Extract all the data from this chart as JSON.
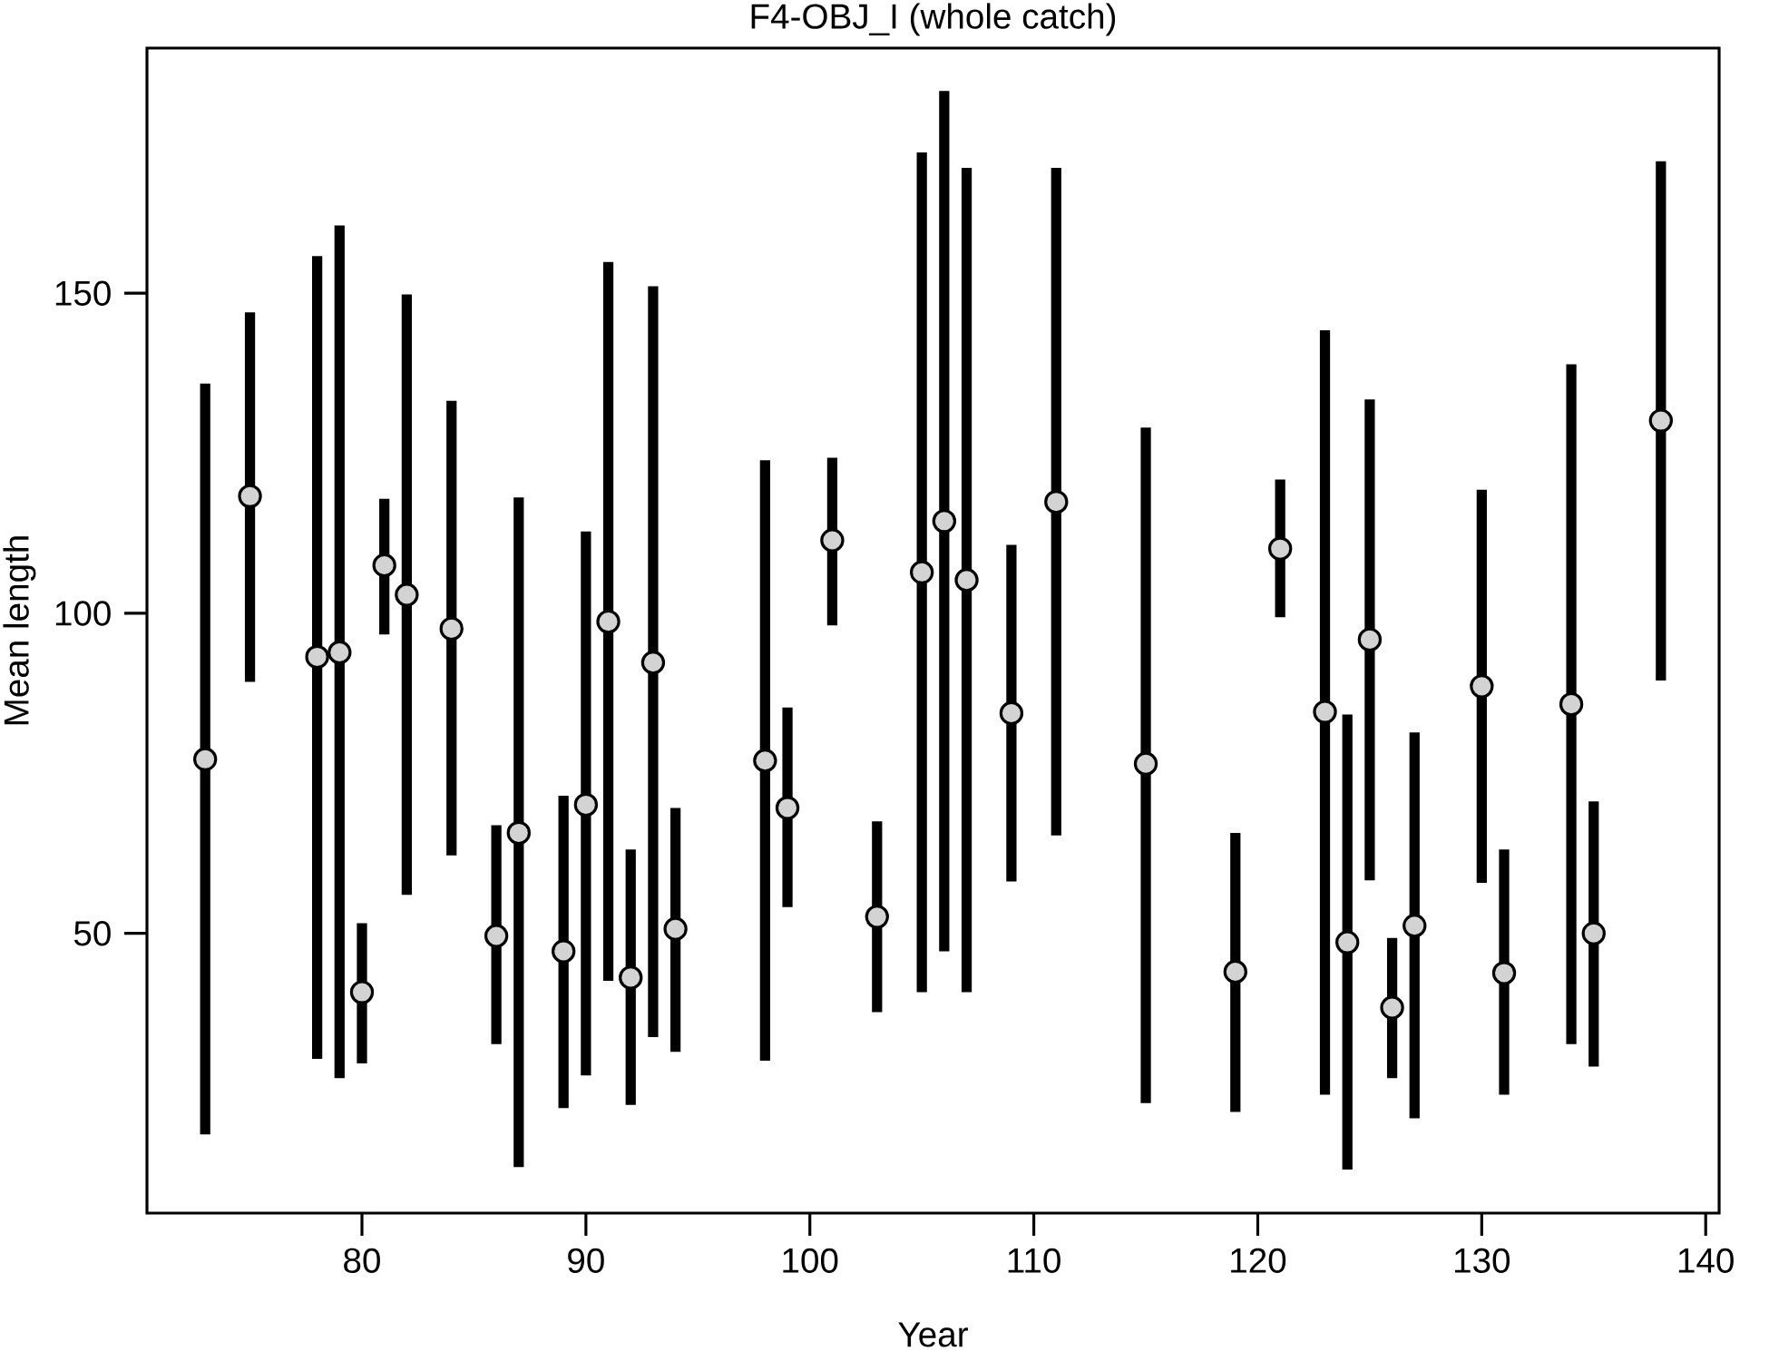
{
  "chart_data": {
    "type": "scatter",
    "title": "F4-OBJ_I (whole catch)",
    "xlabel": "Year",
    "ylabel": "Mean length",
    "xlim": [
      70.4,
      140.6
    ],
    "ylim": [
      6.3,
      188.3
    ],
    "xticks": [
      80,
      90,
      100,
      110,
      120,
      130,
      140
    ],
    "yticks": [
      50,
      100,
      150
    ],
    "grid": false,
    "marker": "circle",
    "series": [
      {
        "color": "#d3d3d3",
        "x": [
          73,
          75,
          78,
          79,
          80,
          81,
          82,
          84,
          86,
          87,
          89,
          90,
          91,
          92,
          93,
          94,
          98,
          99,
          101,
          103,
          105,
          106,
          107,
          109,
          111,
          115,
          119,
          121,
          123,
          124,
          125,
          126,
          127,
          130,
          131,
          134,
          135,
          138
        ],
        "values": [
          77.2,
          118.3,
          93.2,
          93.9,
          40.8,
          107.5,
          102.9,
          97.6,
          49.6,
          65.7,
          47.2,
          70.1,
          98.7,
          43.1,
          92.3,
          50.7,
          77.0,
          69.6,
          111.4,
          52.6,
          106.4,
          114.4,
          105.2,
          84.4,
          117.4,
          76.5,
          44.0,
          110.1,
          84.6,
          48.6,
          95.9,
          38.4,
          51.2,
          88.6,
          43.8,
          85.8,
          50.0,
          130.1
        ],
        "errors": [
          [
            18.6,
            135.9
          ],
          [
            89.3,
            147.0
          ],
          [
            30.4,
            155.8
          ],
          [
            27.4,
            160.6
          ],
          [
            29.7,
            51.6
          ],
          [
            96.7,
            117.9
          ],
          [
            56.0,
            149.8
          ],
          [
            62.2,
            133.2
          ],
          [
            32.7,
            66.9
          ],
          [
            13.5,
            118.1
          ],
          [
            22.7,
            71.5
          ],
          [
            27.8,
            112.8
          ],
          [
            42.6,
            154.9
          ],
          [
            23.2,
            63.1
          ],
          [
            33.8,
            151.1
          ],
          [
            31.5,
            69.6
          ],
          [
            30.1,
            123.9
          ],
          [
            54.1,
            85.3
          ],
          [
            98.1,
            124.3
          ],
          [
            37.7,
            67.5
          ],
          [
            40.8,
            172.0
          ],
          [
            47.2,
            181.6
          ],
          [
            40.8,
            169.6
          ],
          [
            58.1,
            110.7
          ],
          [
            65.3,
            169.6
          ],
          [
            23.5,
            129.0
          ],
          [
            22.1,
            65.7
          ],
          [
            99.4,
            120.9
          ],
          [
            24.8,
            144.2
          ],
          [
            13.1,
            84.2
          ],
          [
            58.3,
            133.4
          ],
          [
            27.4,
            49.3
          ],
          [
            21.1,
            81.4
          ],
          [
            57.9,
            119.3
          ],
          [
            24.8,
            63.1
          ],
          [
            32.7,
            138.9
          ],
          [
            29.2,
            70.6
          ],
          [
            89.5,
            170.6
          ]
        ]
      }
    ]
  }
}
